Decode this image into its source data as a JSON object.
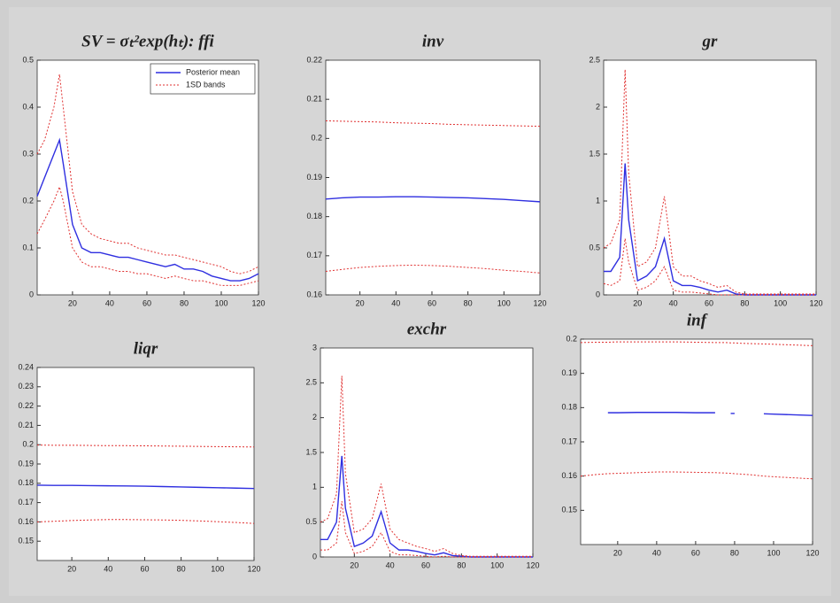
{
  "chart_data": [
    {
      "type": "line",
      "title": "SV = σₜ²exp(hₜ): ffi",
      "legend": "upper right",
      "x": [
        1,
        5,
        10,
        13,
        15,
        20,
        25,
        30,
        35,
        40,
        45,
        50,
        55,
        60,
        65,
        70,
        75,
        80,
        85,
        90,
        95,
        100,
        105,
        110,
        115,
        120
      ],
      "xlim": [
        1,
        120
      ],
      "xticks": [
        20,
        40,
        60,
        80,
        100,
        120
      ],
      "ylim": [
        0,
        0.5
      ],
      "yticks": [
        0,
        0.1,
        0.2,
        0.3,
        0.4,
        0.5
      ],
      "series": [
        {
          "name": "Posterior mean",
          "color": "#2f2fe0",
          "values": [
            0.21,
            0.25,
            0.3,
            0.33,
            0.28,
            0.15,
            0.1,
            0.09,
            0.09,
            0.085,
            0.08,
            0.08,
            0.075,
            0.07,
            0.065,
            0.06,
            0.065,
            0.055,
            0.055,
            0.05,
            0.04,
            0.035,
            0.03,
            0.03,
            0.035,
            0.045
          ]
        },
        {
          "name": "1SD bands",
          "color": "#e03030",
          "values": [
            0.3,
            0.33,
            0.4,
            0.47,
            0.4,
            0.22,
            0.15,
            0.13,
            0.12,
            0.115,
            0.11,
            0.11,
            0.1,
            0.095,
            0.09,
            0.085,
            0.085,
            0.08,
            0.075,
            0.07,
            0.065,
            0.06,
            0.05,
            0.045,
            0.05,
            0.06
          ]
        },
        {
          "color": "#e03030",
          "values": [
            0.13,
            0.16,
            0.2,
            0.23,
            0.2,
            0.1,
            0.07,
            0.06,
            0.06,
            0.055,
            0.05,
            0.05,
            0.045,
            0.045,
            0.04,
            0.035,
            0.04,
            0.035,
            0.03,
            0.03,
            0.025,
            0.02,
            0.02,
            0.02,
            0.025,
            0.03
          ]
        }
      ]
    },
    {
      "type": "line",
      "title": "inv",
      "x": [
        1,
        10,
        20,
        30,
        40,
        50,
        60,
        70,
        80,
        90,
        100,
        110,
        120
      ],
      "xlim": [
        1,
        120
      ],
      "xticks": [
        20,
        40,
        60,
        80,
        100,
        120
      ],
      "ylim": [
        0.16,
        0.22
      ],
      "yticks": [
        0.16,
        0.17,
        0.18,
        0.19,
        0.2,
        0.21,
        0.22
      ],
      "series": [
        {
          "name": "Posterior mean",
          "color": "#2f2fe0",
          "values": [
            0.1845,
            0.1848,
            0.185,
            0.185,
            0.1851,
            0.1851,
            0.185,
            0.1849,
            0.1848,
            0.1846,
            0.1844,
            0.1841,
            0.1838
          ]
        },
        {
          "name": "1SD bands",
          "color": "#e03030",
          "values": [
            0.2045,
            0.2044,
            0.2043,
            0.2042,
            0.204,
            0.2039,
            0.2038,
            0.2036,
            0.2035,
            0.2034,
            0.2033,
            0.2032,
            0.2031
          ]
        },
        {
          "color": "#e03030",
          "values": [
            0.166,
            0.1665,
            0.167,
            0.1673,
            0.1675,
            0.1676,
            0.1675,
            0.1673,
            0.167,
            0.1667,
            0.1663,
            0.166,
            0.1656
          ]
        }
      ]
    },
    {
      "type": "line",
      "title": "gr",
      "x": [
        1,
        5,
        10,
        13,
        15,
        20,
        25,
        30,
        35,
        40,
        45,
        50,
        55,
        60,
        65,
        70,
        75,
        80,
        85,
        90,
        95,
        100,
        105,
        110,
        115,
        120
      ],
      "xlim": [
        1,
        120
      ],
      "xticks": [
        20,
        40,
        60,
        80,
        100,
        120
      ],
      "ylim": [
        0,
        2.5
      ],
      "yticks": [
        0,
        0.5,
        1,
        1.5,
        2,
        2.5
      ],
      "series": [
        {
          "name": "Posterior mean",
          "color": "#2f2fe0",
          "values": [
            0.25,
            0.25,
            0.4,
            1.4,
            0.8,
            0.15,
            0.2,
            0.3,
            0.6,
            0.15,
            0.1,
            0.1,
            0.08,
            0.05,
            0.03,
            0.05,
            0.01,
            0,
            0,
            0,
            0,
            0,
            0,
            0,
            0,
            0
          ]
        },
        {
          "name": "1SD bands",
          "color": "#e03030",
          "values": [
            0.5,
            0.55,
            0.8,
            2.4,
            1.3,
            0.3,
            0.35,
            0.5,
            1.05,
            0.3,
            0.2,
            0.2,
            0.15,
            0.12,
            0.08,
            0.1,
            0.03,
            0.01,
            0.01,
            0.01,
            0.01,
            0.01,
            0.01,
            0.01,
            0.01,
            0.01
          ]
        },
        {
          "color": "#e03030",
          "values": [
            0.12,
            0.1,
            0.15,
            0.6,
            0.35,
            0.05,
            0.08,
            0.15,
            0.3,
            0.05,
            0.03,
            0.03,
            0.02,
            0.01,
            0,
            0,
            0,
            0,
            0,
            0,
            0,
            0,
            0,
            0,
            0,
            0
          ]
        }
      ]
    },
    {
      "type": "line",
      "title": "liqr",
      "x": [
        1,
        10,
        20,
        30,
        40,
        50,
        60,
        70,
        80,
        90,
        100,
        110,
        120
      ],
      "xlim": [
        1,
        120
      ],
      "xticks": [
        20,
        40,
        60,
        80,
        100,
        120
      ],
      "ylim": [
        0.14,
        0.24
      ],
      "yticks": [
        0.15,
        0.16,
        0.17,
        0.18,
        0.19,
        0.2,
        0.21,
        0.22,
        0.23,
        0.24
      ],
      "series": [
        {
          "name": "Posterior mean",
          "color": "#2f2fe0",
          "values": [
            0.179,
            0.1789,
            0.1789,
            0.1788,
            0.1787,
            0.1786,
            0.1785,
            0.1783,
            0.1781,
            0.1779,
            0.1777,
            0.1775,
            0.1773
          ]
        },
        {
          "name": "1SD bands",
          "color": "#e03030",
          "values": [
            0.1998,
            0.1997,
            0.1997,
            0.1996,
            0.1995,
            0.1995,
            0.1994,
            0.1993,
            0.1992,
            0.1991,
            0.199,
            0.1989,
            0.1988
          ]
        },
        {
          "color": "#e03030",
          "values": [
            0.16,
            0.1603,
            0.1607,
            0.161,
            0.1612,
            0.1612,
            0.1611,
            0.161,
            0.1608,
            0.1605,
            0.1601,
            0.1597,
            0.1592
          ]
        }
      ]
    },
    {
      "type": "line",
      "title": "exchr",
      "x": [
        1,
        5,
        10,
        13,
        15,
        20,
        25,
        30,
        35,
        40,
        45,
        50,
        55,
        60,
        65,
        70,
        75,
        80,
        85,
        90,
        95,
        100,
        105,
        110,
        115,
        120
      ],
      "xlim": [
        1,
        120
      ],
      "xticks": [
        20,
        40,
        60,
        80,
        100,
        120
      ],
      "ylim": [
        0,
        3
      ],
      "yticks": [
        0,
        0.5,
        1,
        1.5,
        2,
        2.5,
        3
      ],
      "series": [
        {
          "name": "Posterior mean",
          "color": "#2f2fe0",
          "values": [
            0.25,
            0.25,
            0.5,
            1.45,
            0.7,
            0.15,
            0.2,
            0.3,
            0.65,
            0.2,
            0.1,
            0.1,
            0.08,
            0.05,
            0.03,
            0.06,
            0.02,
            0.01,
            0,
            0,
            0,
            0,
            0,
            0,
            0,
            0
          ]
        },
        {
          "name": "1SD bands",
          "color": "#e03030",
          "values": [
            0.5,
            0.55,
            0.9,
            2.6,
            1.2,
            0.35,
            0.4,
            0.55,
            1.05,
            0.4,
            0.25,
            0.2,
            0.15,
            0.12,
            0.08,
            0.12,
            0.05,
            0.02,
            0.01,
            0.01,
            0.01,
            0.01,
            0.01,
            0.01,
            0.01,
            0.01
          ]
        },
        {
          "color": "#e03030",
          "values": [
            0.1,
            0.1,
            0.2,
            0.8,
            0.35,
            0.05,
            0.08,
            0.15,
            0.35,
            0.08,
            0.03,
            0.03,
            0.02,
            0.01,
            0,
            0.01,
            0,
            0,
            0,
            0,
            0,
            0,
            0,
            0,
            0,
            0
          ]
        }
      ]
    },
    {
      "type": "line",
      "title": "inf",
      "x": [
        1,
        10,
        15,
        20,
        30,
        40,
        50,
        60,
        70,
        75,
        78,
        80,
        83,
        88,
        95,
        100,
        110,
        120
      ],
      "xlim": [
        1,
        120
      ],
      "xticks": [
        20,
        40,
        60,
        80,
        100,
        120
      ],
      "ylim": [
        0.14,
        0.2
      ],
      "yticks": [
        0.15,
        0.16,
        0.17,
        0.18,
        0.19,
        0.2
      ],
      "series": [
        {
          "name": "Posterior mean",
          "color": "#2f2fe0",
          "values": [
            null,
            null,
            0.1785,
            0.1785,
            0.1786,
            0.1786,
            0.1786,
            0.1785,
            0.1785,
            null,
            0.1783,
            0.1783,
            null,
            null,
            0.1782,
            0.1781,
            0.1779,
            0.1777
          ]
        },
        {
          "name": "1SD bands",
          "color": "#e03030",
          "values": [
            0.199,
            0.1991,
            0.1991,
            0.1992,
            0.1992,
            0.1992,
            0.1992,
            0.1991,
            0.199,
            0.199,
            0.1989,
            0.1989,
            0.1988,
            0.1987,
            0.1986,
            0.1985,
            0.1983,
            0.1981
          ]
        },
        {
          "color": "#e03030",
          "values": [
            0.16,
            0.1605,
            0.1607,
            0.1608,
            0.161,
            0.1612,
            0.1612,
            0.1611,
            0.161,
            0.1609,
            0.1608,
            0.1607,
            0.1606,
            0.1604,
            0.16,
            0.1598,
            0.1595,
            0.1592
          ]
        }
      ]
    }
  ]
}
